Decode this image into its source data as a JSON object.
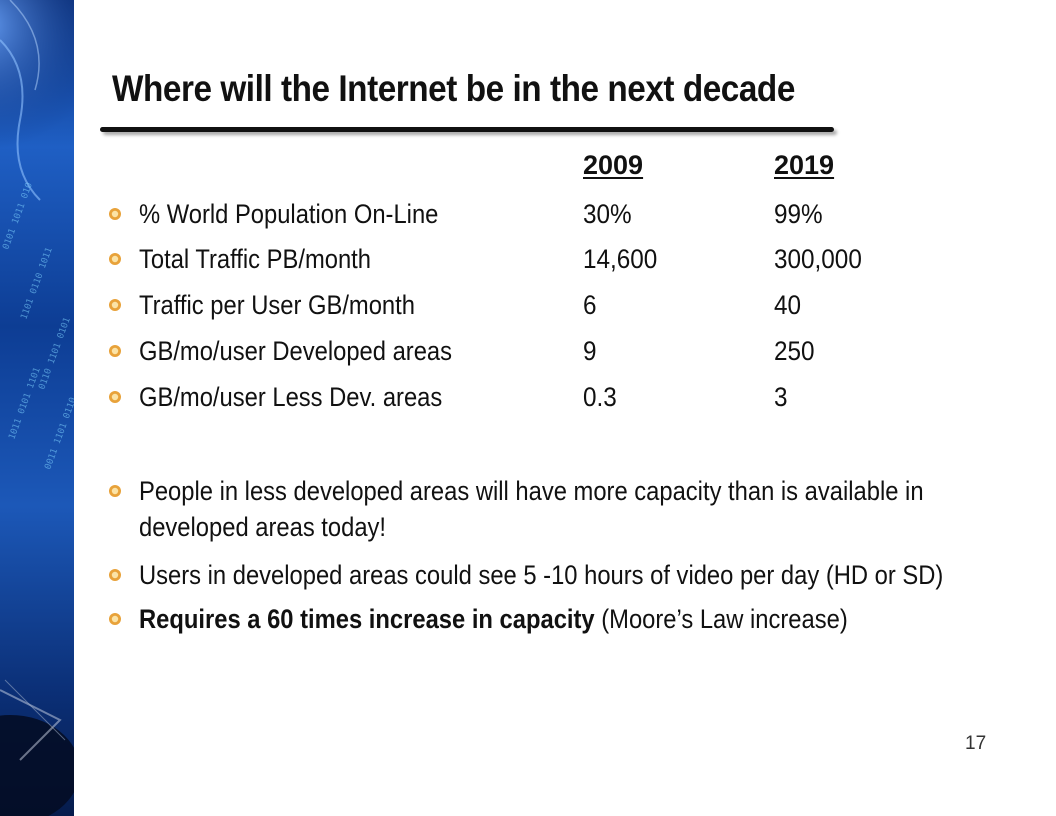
{
  "slide": {
    "title": "Where will the Internet be in the next decade",
    "columns": {
      "year1": "2009",
      "year2": "2019"
    },
    "rows": [
      {
        "label": "% World Population On-Line",
        "v2009": "30%",
        "v2019": "99%"
      },
      {
        "label": "Total Traffic PB/month",
        "v2009": "14,600",
        "v2019": "300,000"
      },
      {
        "label": "Traffic per User GB/month",
        "v2009": "6",
        "v2019": "40"
      },
      {
        "label": "GB/mo/user Developed areas",
        "v2009": "9",
        "v2019": "250"
      },
      {
        "label": "GB/mo/user Less Dev. areas",
        "v2009": "0.3",
        "v2019": "3"
      }
    ],
    "notes": [
      {
        "text": "People in  less developed areas will have more capacity than is available in developed areas today!"
      },
      {
        "text": "Users in developed areas could see 5 -10 hours of video per day (HD or SD)"
      },
      {
        "bold": "Requires a 60 times increase in capacity",
        "text": " (Moore’s Law increase)"
      }
    ],
    "page_number": "17"
  },
  "colors": {
    "bullet": "#e8a23a",
    "band_dark": "#0a2f7a",
    "band_light": "#1f5fc4"
  },
  "icons": {
    "bullet": "sun-bullet-icon"
  }
}
